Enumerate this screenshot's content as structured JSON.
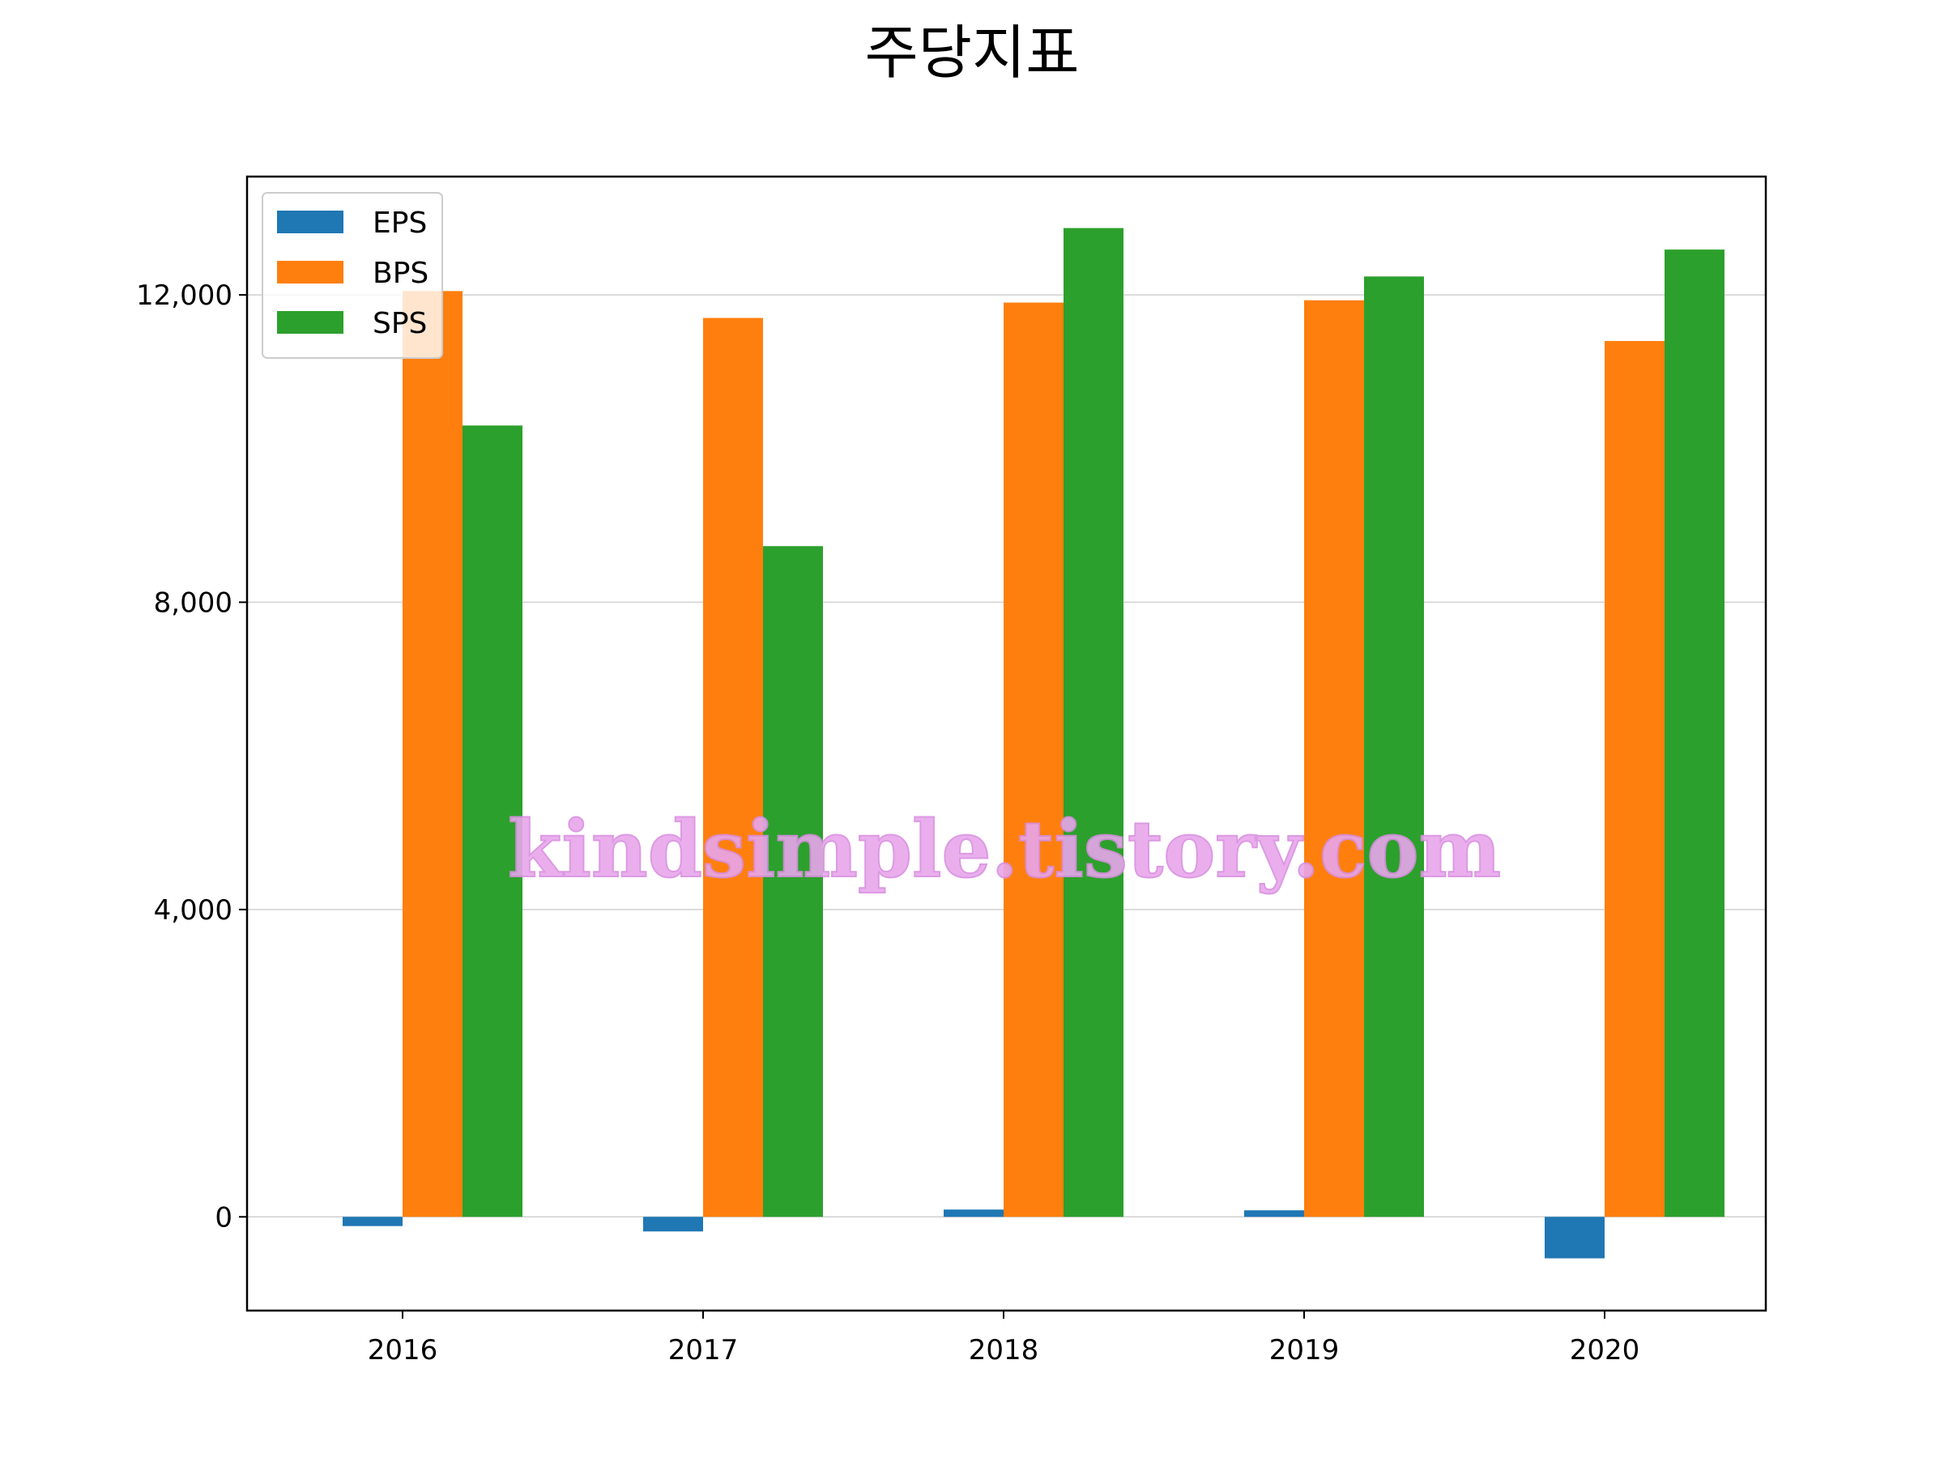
{
  "chart_data": {
    "type": "bar",
    "title": "주당지표",
    "xlabel": "",
    "ylabel": "",
    "categories": [
      "2016",
      "2017",
      "2018",
      "2019",
      "2020"
    ],
    "series": [
      {
        "name": "EPS",
        "color": "#1f77b4",
        "values": [
          -120,
          -190,
          95,
          85,
          -540
        ]
      },
      {
        "name": "BPS",
        "color": "#ff7f0e",
        "values": [
          12050,
          11700,
          11900,
          11930,
          11400
        ]
      },
      {
        "name": "SPS",
        "color": "#2ca02c",
        "values": [
          10300,
          8730,
          12870,
          12240,
          12590
        ]
      }
    ],
    "ylim": [
      -1220,
      13540
    ],
    "yticks": [
      0,
      4000,
      8000,
      12000
    ],
    "ytick_labels": [
      "0",
      "4,000",
      "8,000",
      "12,000"
    ],
    "grid": "horizontal",
    "legend": "top-left"
  },
  "watermark": "kindsimple.tistory.com"
}
